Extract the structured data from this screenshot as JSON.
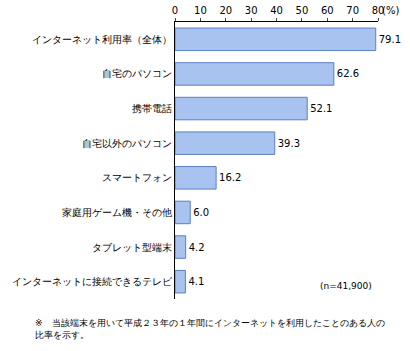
{
  "chart_data": {
    "type": "bar",
    "orientation": "horizontal",
    "categories": [
      "インターネット利用率（全体）",
      "自宅のパソコン",
      "携帯電話",
      "自宅以外のパソコン",
      "スマートフォン",
      "家庭用ゲーム機・その他",
      "タブレット型端末",
      "インターネットに接続できるテレビ"
    ],
    "values": [
      79.1,
      62.6,
      52.1,
      39.3,
      16.2,
      6.0,
      4.2,
      4.1
    ],
    "value_labels": [
      "79.1",
      "62.6",
      "52.1",
      "39.3",
      "16.2",
      "6.0",
      "4.2",
      "4.1"
    ],
    "data_labels": true,
    "color": "#a8c3ef",
    "xlim": [
      0,
      80
    ],
    "xticks": [
      0,
      10,
      20,
      30,
      40,
      50,
      60,
      70,
      80
    ],
    "x_label": "(%)",
    "grid": false,
    "annotations": [
      "(n=41,900)"
    ],
    "note": [
      "※　当該端末を用いて平成２３年の１年間にインターネットを利用したことのある人の",
      "比率を示す。"
    ]
  }
}
